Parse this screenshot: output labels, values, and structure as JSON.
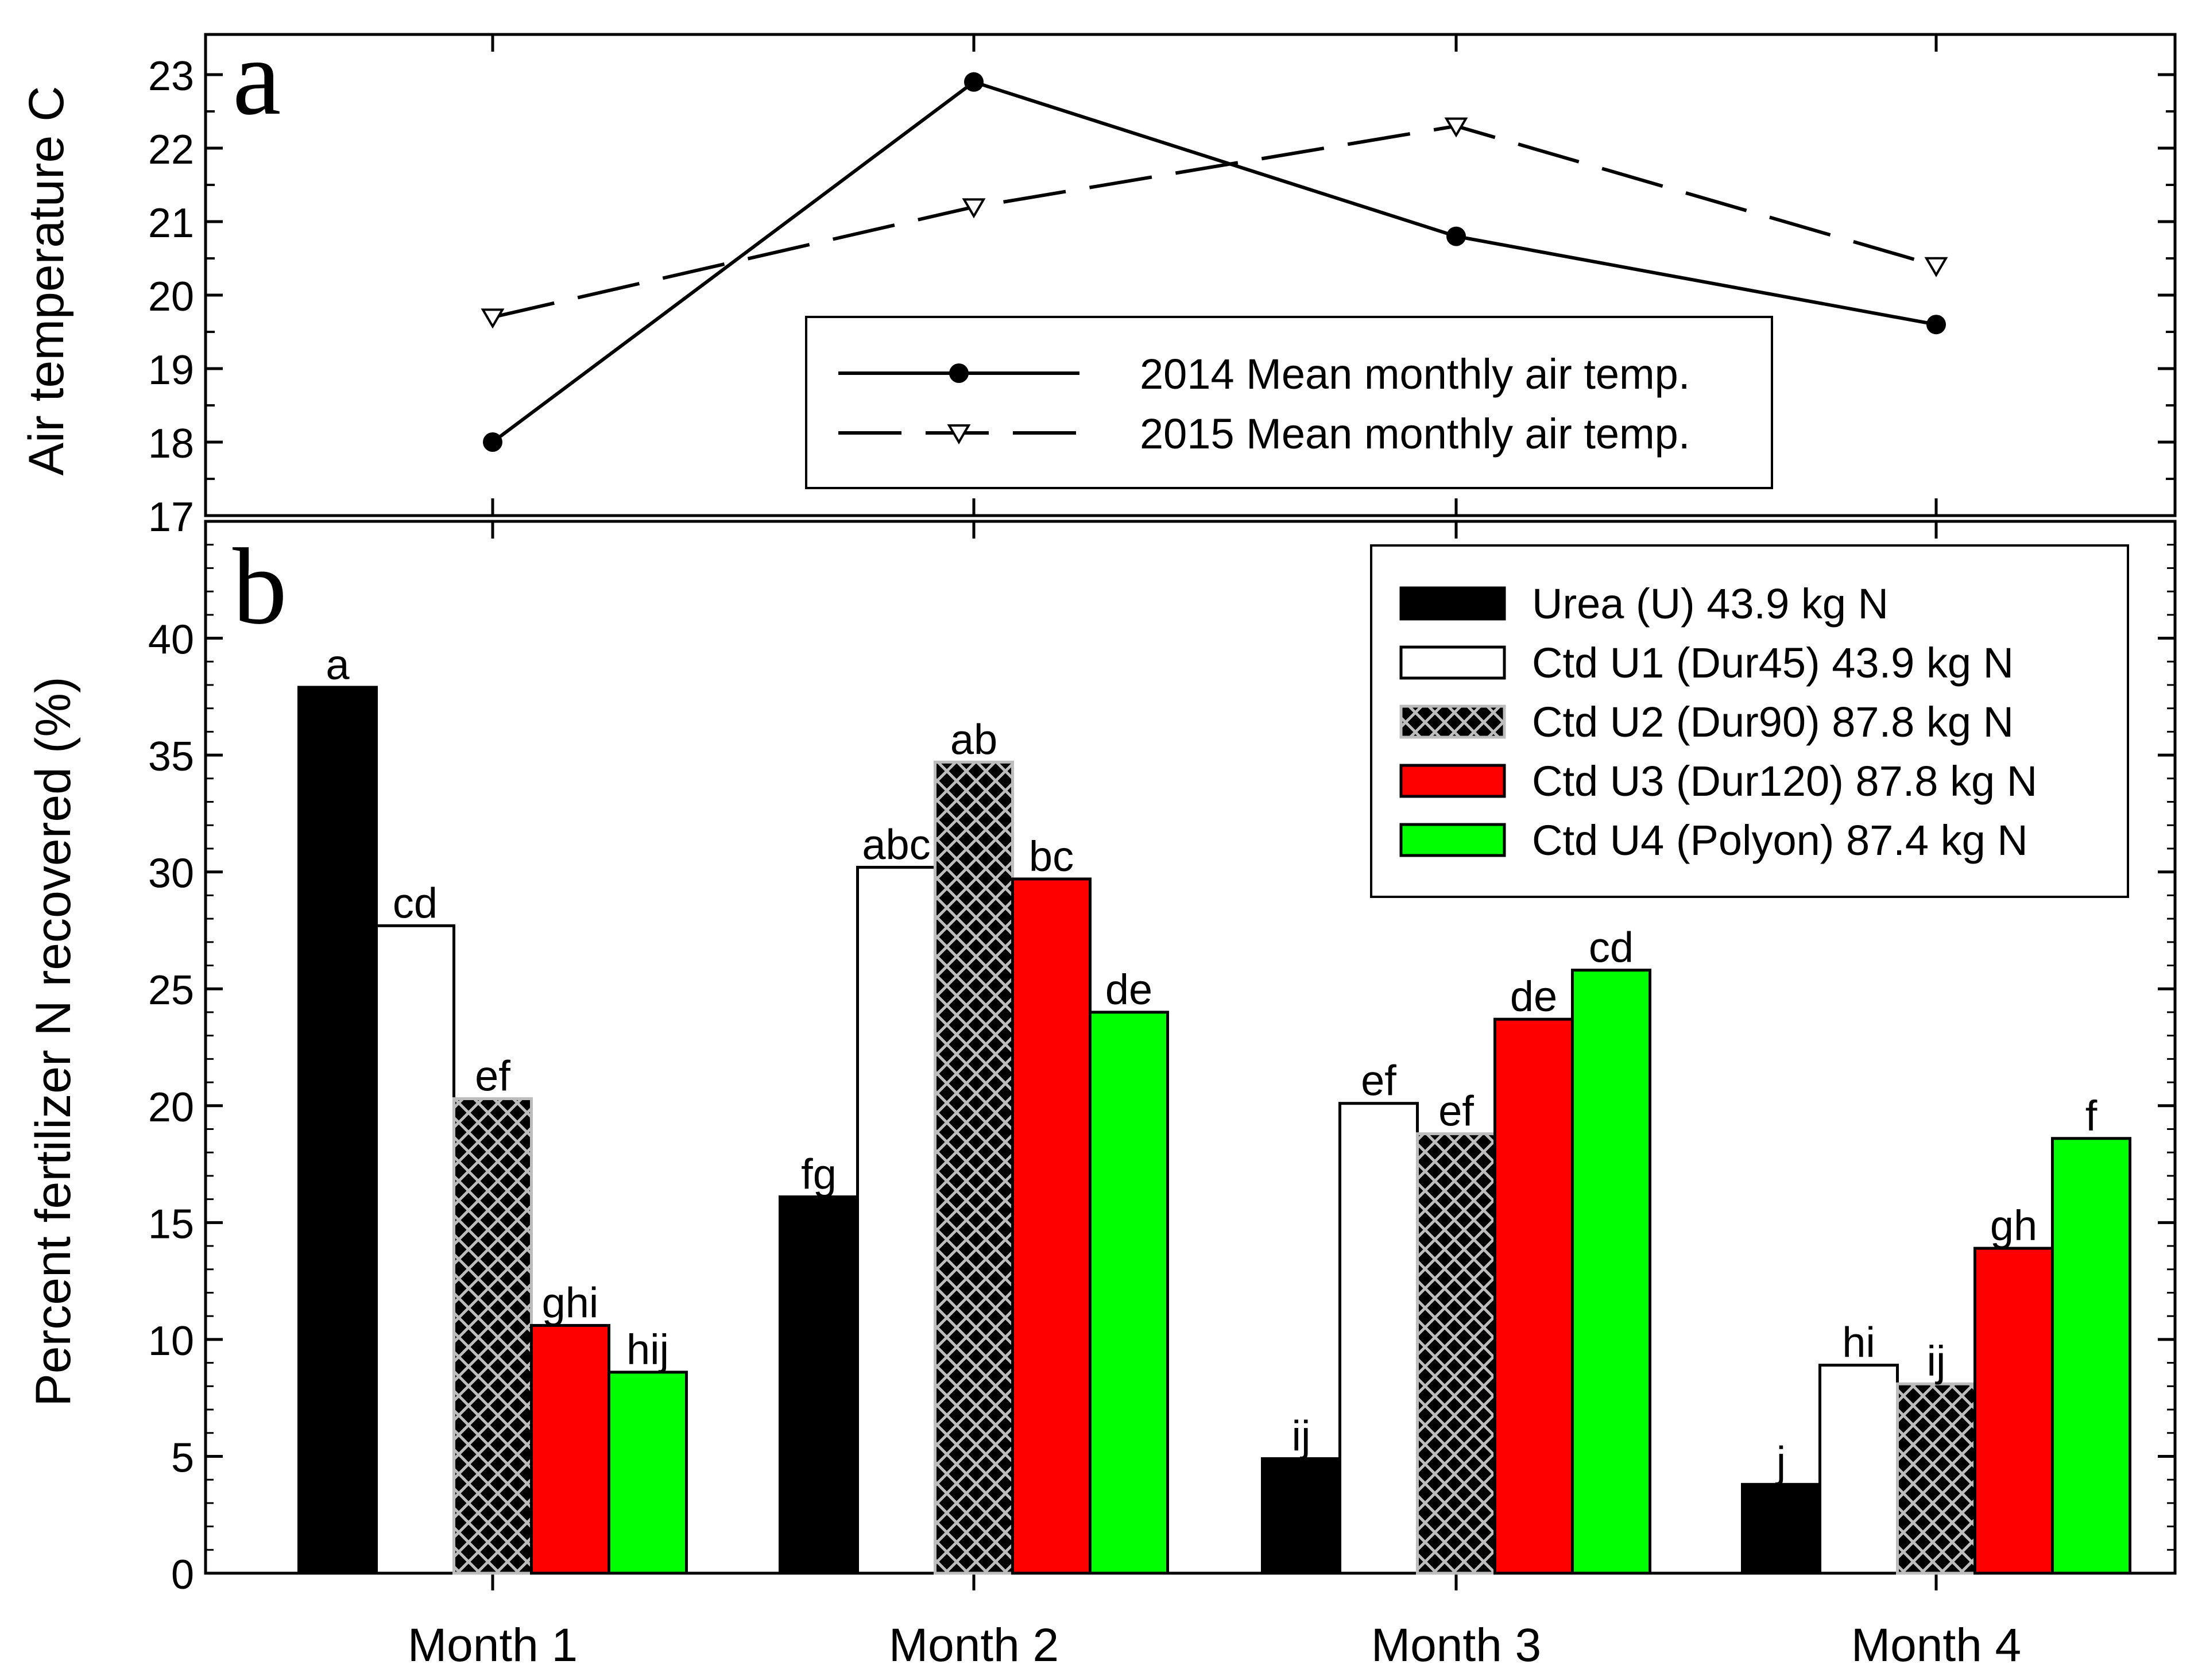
{
  "chart_data": [
    {
      "panel_label": "a",
      "type": "line",
      "ylabel": "Air temperature C",
      "ylim": [
        17,
        23
      ],
      "yticks": [
        "17",
        "18",
        "19",
        "20",
        "21",
        "22",
        "23"
      ],
      "categories": [
        "Month 1",
        "Month 2",
        "Month 3",
        "Month 4"
      ],
      "series": [
        {
          "name": "2014 Mean monthly air temp.",
          "values": [
            18.0,
            22.9,
            20.8,
            19.6
          ],
          "style": "solid",
          "marker": "filled-circle"
        },
        {
          "name": "2015 Mean monthly air temp.",
          "values": [
            19.7,
            21.2,
            22.3,
            20.4
          ],
          "style": "dashed",
          "marker": "open-triangle-down"
        }
      ],
      "legend_position": "bottom-right",
      "grid": false
    },
    {
      "panel_label": "b",
      "type": "bar",
      "ylabel": "Percent fertilizer N recovered (%)",
      "ylim": [
        0,
        45
      ],
      "yticks": [
        "0",
        "5",
        "10",
        "15",
        "20",
        "25",
        "30",
        "35",
        "40"
      ],
      "categories": [
        "Month 1",
        "Month 2",
        "Month 3",
        "Month 4"
      ],
      "series": [
        {
          "name": "Urea (U) 43.9 kg N",
          "values": [
            37.9,
            16.1,
            4.9,
            3.8
          ],
          "letters": [
            "a",
            "fg",
            "ij",
            "j"
          ],
          "fill": "solid",
          "color": "#000000"
        },
        {
          "name": "Ctd U1 (Dur45) 43.9 kg N",
          "values": [
            27.7,
            30.2,
            20.1,
            8.9
          ],
          "letters": [
            "cd",
            "abc",
            "ef",
            "hi"
          ],
          "fill": "solid",
          "color": "#ffffff"
        },
        {
          "name": "Ctd U2 (Dur90) 87.8 kg N",
          "values": [
            20.3,
            34.7,
            18.8,
            8.1
          ],
          "letters": [
            "ef",
            "ab",
            "ef",
            "ij"
          ],
          "fill": "crosshatch",
          "color": "#000000"
        },
        {
          "name": "Ctd U3 (Dur120) 87.8 kg N",
          "values": [
            10.6,
            29.7,
            23.7,
            13.9
          ],
          "letters": [
            "ghi",
            "bc",
            "de",
            "gh"
          ],
          "fill": "solid",
          "color": "#ff0000"
        },
        {
          "name": "Ctd U4 (Polyon) 87.4 kg N",
          "values": [
            8.6,
            24.0,
            25.8,
            18.6
          ],
          "letters": [
            "hij",
            "de",
            "cd",
            "f"
          ],
          "fill": "solid",
          "color": "#00ff00"
        }
      ],
      "legend_position": "top-right",
      "grid": false
    }
  ]
}
